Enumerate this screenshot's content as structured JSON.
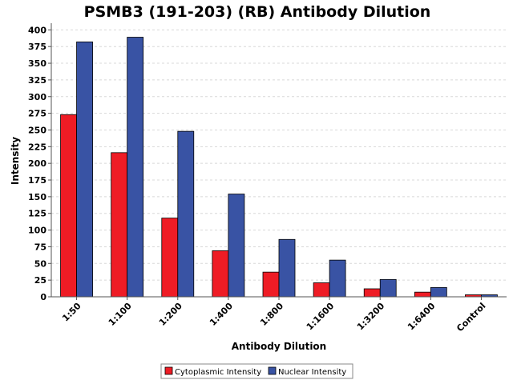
{
  "chart_data": {
    "type": "bar",
    "title": "PSMB3 (191-203) (RB) Antibody Dilution",
    "xlabel": "Antibody Dilution",
    "ylabel": "Intensity",
    "ylim": [
      0,
      410
    ],
    "yticks": [
      0,
      25,
      50,
      75,
      100,
      125,
      150,
      175,
      200,
      225,
      250,
      275,
      300,
      325,
      350,
      375,
      400
    ],
    "grid": true,
    "legend_position": "bottom",
    "categories": [
      "1:50",
      "1:100",
      "1:200",
      "1:400",
      "1:800",
      "1:1600",
      "1:3200",
      "1:6400",
      "Control"
    ],
    "series": [
      {
        "name": "Cytoplasmic Intensity",
        "color": "#ee1c25",
        "values": [
          273,
          216,
          118,
          69,
          37,
          21,
          12,
          7,
          3
        ]
      },
      {
        "name": "Nuclear Intensity",
        "color": "#3953a4",
        "values": [
          382,
          389,
          248,
          154,
          86,
          55,
          26,
          14,
          3
        ]
      }
    ]
  }
}
